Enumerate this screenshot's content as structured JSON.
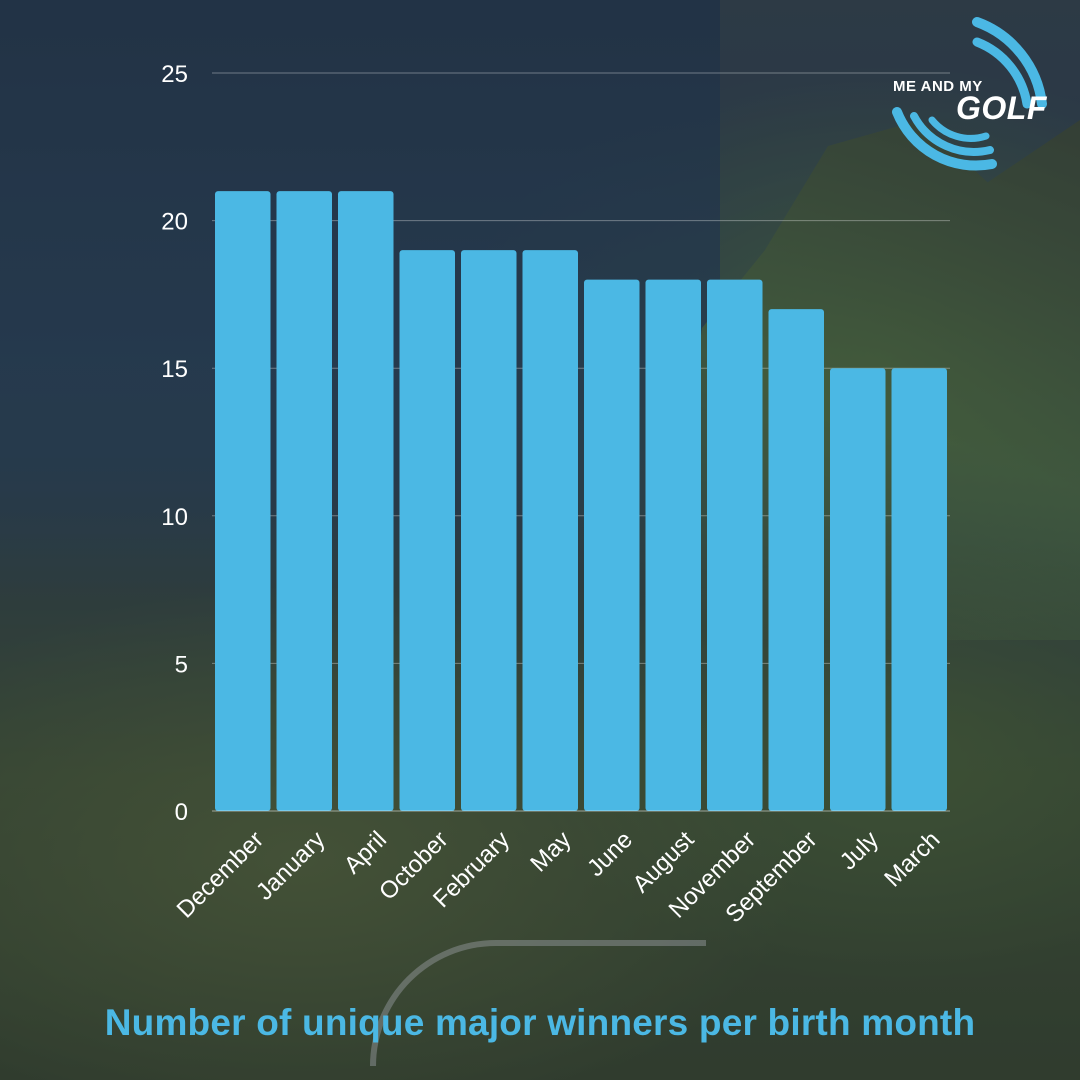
{
  "brand": {
    "logo_line1": "ME AND MY",
    "logo_line2": "GOLF",
    "accent_color": "#4bb8e4"
  },
  "chart_data": {
    "type": "bar",
    "title": "Number of unique major winners per birth month",
    "xlabel": "",
    "ylabel": "",
    "categories": [
      "December",
      "January",
      "April",
      "October",
      "February",
      "May",
      "June",
      "August",
      "November",
      "September",
      "July",
      "March"
    ],
    "values": [
      21,
      21,
      21,
      19,
      19,
      19,
      18,
      18,
      18,
      17,
      15,
      15
    ],
    "ylim": [
      0,
      25
    ],
    "yticks": [
      0,
      5,
      10,
      15,
      20,
      25
    ],
    "grid": true,
    "bar_color": "#4bb8e4"
  }
}
